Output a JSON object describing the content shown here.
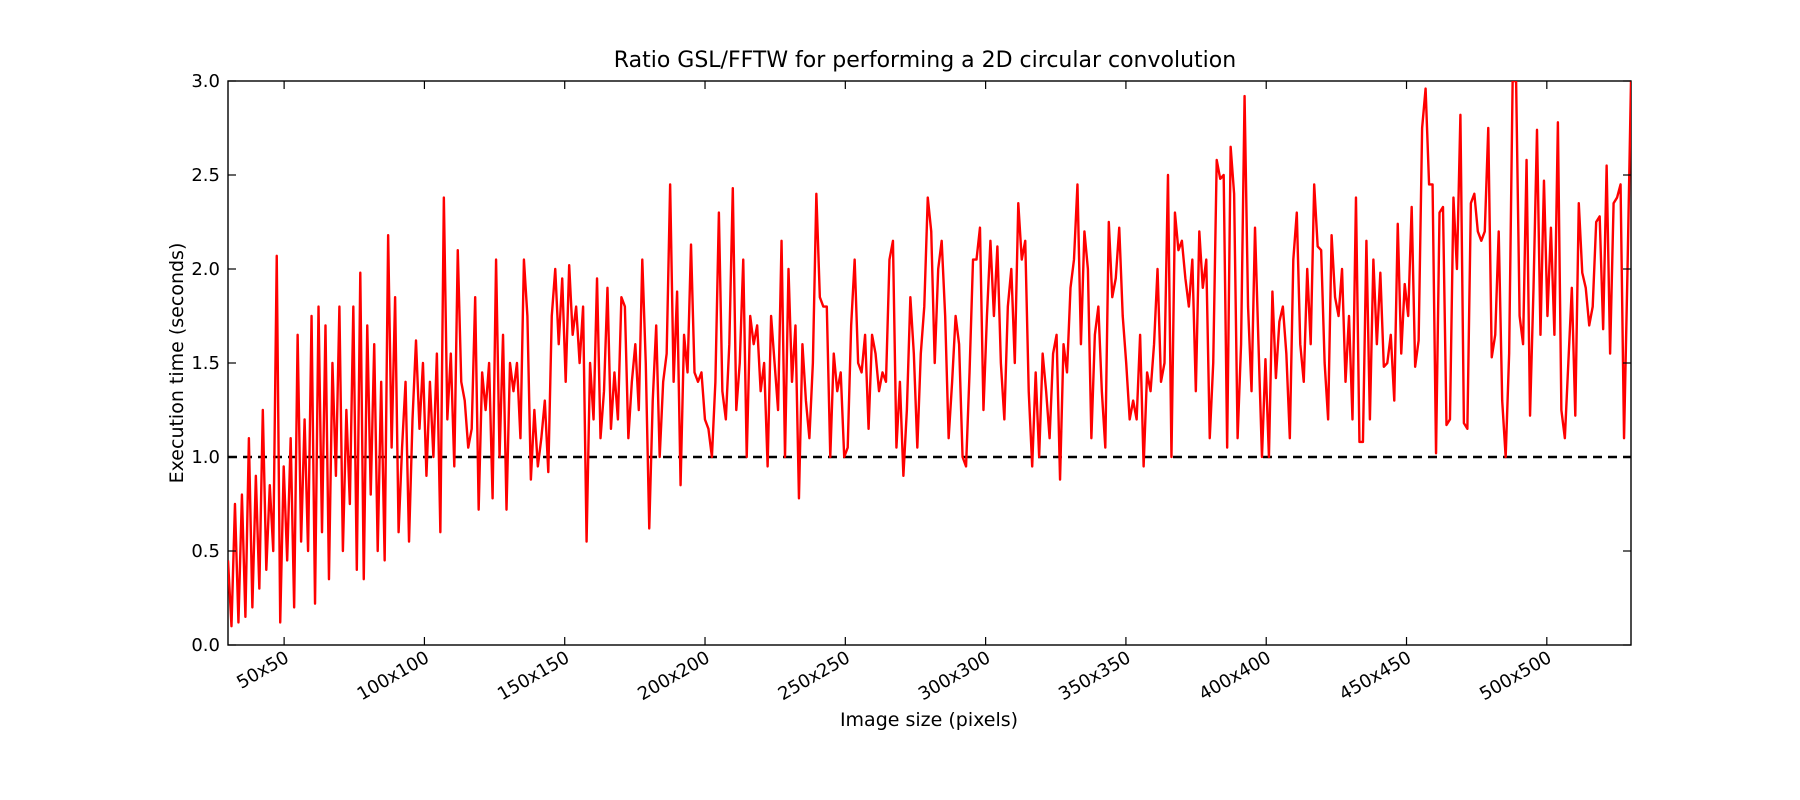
{
  "chart_data": {
    "type": "line",
    "title": "Ratio GSL/FFTW for performing a 2D circular convolution",
    "xlabel": "Image size (pixels)",
    "ylabel": "Execution time (seconds)",
    "x_tick_labels": [
      "50x50",
      "100x100",
      "150x150",
      "200x200",
      "250x250",
      "300x300",
      "350x350",
      "400x400",
      "450x450",
      "500x500"
    ],
    "x_tick_positions": [
      50,
      100,
      150,
      200,
      250,
      300,
      350,
      400,
      450,
      500
    ],
    "xlim": [
      30,
      530
    ],
    "ylim": [
      0.0,
      3.0
    ],
    "y_ticks": [
      0.0,
      0.5,
      1.0,
      1.5,
      2.0,
      2.5,
      3.0
    ],
    "y_tick_labels": [
      "0.0",
      "0.5",
      "1.0",
      "1.5",
      "2.0",
      "2.5",
      "3.0"
    ],
    "grid": false,
    "series": [
      {
        "color": "#ff0000",
        "x_start": 30,
        "x_end": 530,
        "values": [
          0.45,
          0.1,
          0.75,
          0.12,
          0.8,
          0.15,
          1.1,
          0.2,
          0.9,
          0.3,
          1.25,
          0.4,
          0.85,
          0.5,
          2.07,
          0.12,
          0.95,
          0.45,
          1.1,
          0.2,
          1.65,
          0.55,
          1.2,
          0.5,
          1.75,
          0.22,
          1.8,
          0.6,
          1.7,
          0.35,
          1.5,
          0.9,
          1.8,
          0.5,
          1.25,
          0.75,
          1.8,
          0.4,
          1.98,
          0.35,
          1.7,
          0.8,
          1.6,
          0.5,
          1.4,
          0.45,
          2.18,
          1.05,
          1.85,
          0.6,
          1.05,
          1.4,
          0.55,
          1.2,
          1.62,
          1.15,
          1.5,
          0.9,
          1.4,
          1.0,
          1.55,
          0.6,
          2.38,
          1.2,
          1.55,
          0.95,
          2.1,
          1.4,
          1.3,
          1.05,
          1.15,
          1.85,
          0.72,
          1.45,
          1.25,
          1.5,
          0.78,
          2.05,
          1.0,
          1.65,
          0.72,
          1.5,
          1.35,
          1.5,
          1.1,
          2.05,
          1.75,
          0.88,
          1.25,
          0.95,
          1.1,
          1.3,
          0.92,
          1.75,
          2.0,
          1.6,
          1.95,
          1.4,
          2.02,
          1.65,
          1.8,
          1.5,
          1.8,
          0.55,
          1.5,
          1.2,
          1.95,
          1.1,
          1.35,
          1.9,
          1.15,
          1.45,
          1.2,
          1.85,
          1.8,
          1.1,
          1.4,
          1.6,
          1.25,
          2.05,
          1.5,
          0.62,
          1.3,
          1.7,
          1.0,
          1.4,
          1.55,
          2.45,
          1.4,
          1.88,
          0.85,
          1.65,
          1.45,
          2.13,
          1.45,
          1.4,
          1.45,
          1.2,
          1.15,
          1.0,
          1.4,
          2.3,
          1.35,
          1.2,
          1.6,
          2.43,
          1.25,
          1.5,
          2.05,
          1.0,
          1.75,
          1.6,
          1.7,
          1.35,
          1.5,
          0.95,
          1.75,
          1.5,
          1.25,
          2.15,
          1.0,
          2.0,
          1.4,
          1.7,
          0.78,
          1.6,
          1.3,
          1.1,
          1.5,
          2.4,
          1.85,
          1.8,
          1.8,
          1.0,
          1.55,
          1.35,
          1.45,
          1.0,
          1.05,
          1.7,
          2.05,
          1.5,
          1.45,
          1.65,
          1.15,
          1.65,
          1.55,
          1.35,
          1.45,
          1.4,
          2.05,
          2.15,
          1.05,
          1.4,
          0.9,
          1.25,
          1.85,
          1.55,
          1.05,
          1.55,
          1.8,
          2.38,
          2.2,
          1.5,
          2.0,
          2.15,
          1.75,
          1.1,
          1.4,
          1.75,
          1.6,
          1.0,
          0.95,
          1.45,
          2.05,
          2.05,
          2.22,
          1.25,
          1.75,
          2.15,
          1.75,
          2.12,
          1.5,
          1.2,
          1.8,
          2.0,
          1.5,
          2.35,
          2.05,
          2.15,
          1.35,
          0.95,
          1.45,
          1.0,
          1.55,
          1.35,
          1.1,
          1.55,
          1.65,
          0.88,
          1.6,
          1.45,
          1.9,
          2.05,
          2.45,
          1.6,
          2.2,
          2.0,
          1.1,
          1.65,
          1.8,
          1.35,
          1.05,
          2.25,
          1.85,
          1.95,
          2.22,
          1.75,
          1.5,
          1.2,
          1.3,
          1.2,
          1.65,
          0.95,
          1.45,
          1.35,
          1.6,
          2.0,
          1.4,
          1.5,
          2.5,
          1.0,
          2.3,
          2.1,
          2.15,
          1.95,
          1.8,
          2.05,
          1.35,
          2.2,
          1.9,
          2.05,
          1.1,
          1.5,
          2.58,
          2.48,
          2.5,
          1.05,
          2.65,
          2.4,
          1.1,
          1.6,
          2.92,
          1.8,
          1.35,
          2.22,
          1.6,
          1.0,
          1.52,
          1.0,
          1.88,
          1.42,
          1.72,
          1.8,
          1.55,
          1.1,
          2.05,
          2.3,
          1.6,
          1.4,
          2.0,
          1.6,
          2.45,
          2.12,
          2.1,
          1.5,
          1.2,
          2.18,
          1.85,
          1.75,
          2.0,
          1.4,
          1.75,
          1.2,
          2.38,
          1.08,
          1.08,
          2.15,
          1.2,
          2.05,
          1.6,
          1.98,
          1.48,
          1.5,
          1.65,
          1.3,
          2.24,
          1.55,
          1.92,
          1.75,
          2.33,
          1.48,
          1.62,
          2.75,
          2.96,
          2.45,
          2.45,
          1.02,
          2.3,
          2.33,
          1.17,
          1.2,
          2.38,
          2.0,
          2.82,
          1.18,
          1.15,
          2.35,
          2.4,
          2.2,
          2.15,
          2.2,
          2.75,
          1.53,
          1.65,
          2.2,
          1.3,
          1.0,
          1.55,
          3.0,
          3.0,
          1.75,
          1.6,
          2.58,
          1.22,
          1.9,
          2.74,
          1.65,
          2.47,
          1.75,
          2.22,
          1.65,
          2.78,
          1.25,
          1.1,
          1.5,
          1.9,
          1.22,
          2.35,
          1.98,
          1.9,
          1.7,
          1.8,
          2.25,
          2.28,
          1.68,
          2.55,
          1.55,
          2.35,
          2.38,
          2.45,
          1.1,
          2.0,
          3.0
        ]
      },
      {
        "color": "#000000",
        "style": "dashed",
        "x": [
          30,
          530
        ],
        "values": [
          1.0,
          1.0
        ]
      }
    ]
  }
}
